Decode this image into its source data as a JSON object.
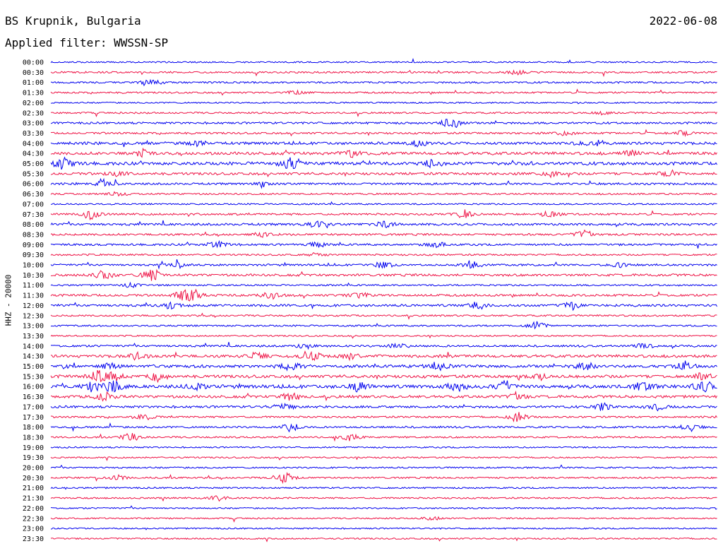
{
  "header": {
    "station": "BS Krupnik, Bulgaria",
    "date": "2022-06-08",
    "filter": "Applied filter: WWSSN-SP"
  },
  "colors": {
    "trace_a": "#0000ee",
    "trace_b": "#ee1144"
  },
  "chart_data": {
    "type": "line",
    "title": "BS Krupnik, Bulgaria",
    "ylabel": "HHZ - 20000",
    "xlabel": "",
    "ticks": [
      "00:00",
      "00:30",
      "01:00",
      "01:30",
      "02:00",
      "02:30",
      "03:00",
      "03:30",
      "04:00",
      "04:30",
      "05:00",
      "05:30",
      "06:00",
      "06:30",
      "07:00",
      "07:30",
      "08:00",
      "08:30",
      "09:00",
      "09:30",
      "10:00",
      "10:30",
      "11:00",
      "11:30",
      "12:00",
      "12:30",
      "13:00",
      "13:30",
      "14:00",
      "14:30",
      "15:00",
      "15:30",
      "16:00",
      "16:30",
      "17:00",
      "17:30",
      "18:00",
      "18:30",
      "19:00",
      "19:30",
      "20:00",
      "20:30",
      "21:00",
      "21:30",
      "22:00",
      "22:30",
      "23:00",
      "23:30"
    ],
    "activity": [
      0.2,
      0.3,
      0.35,
      0.3,
      0.2,
      0.3,
      0.45,
      0.4,
      0.7,
      0.75,
      0.85,
      0.6,
      0.45,
      0.3,
      0.25,
      0.4,
      0.55,
      0.45,
      0.45,
      0.3,
      0.4,
      0.55,
      0.3,
      0.5,
      0.55,
      0.3,
      0.3,
      0.2,
      0.45,
      0.7,
      0.75,
      0.8,
      0.95,
      0.65,
      0.55,
      0.35,
      0.4,
      0.3,
      0.2,
      0.2,
      0.25,
      0.3,
      0.25,
      0.25,
      0.2,
      0.2,
      0.2,
      0.2
    ],
    "events": [
      [],
      [
        [
          0.7,
          1.2
        ]
      ],
      [
        [
          0.15,
          1.5
        ]
      ],
      [
        [
          0.37,
          0.8
        ]
      ],
      [],
      [
        [
          0.83,
          0.8
        ]
      ],
      [
        [
          0.6,
          2.5
        ]
      ],
      [
        [
          0.77,
          0.8
        ],
        [
          0.95,
          0.9
        ]
      ],
      [
        [
          0.22,
          1.0
        ],
        [
          0.55,
          1.2
        ],
        [
          0.8,
          1.0
        ]
      ],
      [
        [
          0.14,
          1.2
        ],
        [
          0.45,
          1.3
        ],
        [
          0.87,
          1.1
        ]
      ],
      [
        [
          0.02,
          2.6
        ],
        [
          0.36,
          2.8
        ],
        [
          0.57,
          1.5
        ]
      ],
      [
        [
          0.1,
          1.0
        ],
        [
          0.75,
          0.9
        ],
        [
          0.93,
          1.2
        ]
      ],
      [
        [
          0.08,
          1.3
        ],
        [
          0.32,
          0.8
        ]
      ],
      [
        [
          0.1,
          0.8
        ]
      ],
      [],
      [
        [
          0.06,
          1.8
        ],
        [
          0.62,
          1.4
        ],
        [
          0.75,
          1.3
        ]
      ],
      [
        [
          0.4,
          1.2
        ],
        [
          0.5,
          1.1
        ]
      ],
      [
        [
          0.32,
          0.9
        ],
        [
          0.8,
          1.5
        ]
      ],
      [
        [
          0.25,
          1.4
        ],
        [
          0.4,
          1.1
        ],
        [
          0.58,
          1.1
        ]
      ],
      [
        [
          0.4,
          0.7
        ]
      ],
      [
        [
          0.19,
          1.0
        ],
        [
          0.5,
          1.5
        ],
        [
          0.63,
          1.3
        ],
        [
          0.85,
          1.1
        ]
      ],
      [
        [
          0.08,
          1.8
        ],
        [
          0.15,
          2.4
        ]
      ],
      [
        [
          0.12,
          0.9
        ]
      ],
      [
        [
          0.2,
          1.6
        ],
        [
          0.21,
          3.0
        ],
        [
          0.33,
          1.4
        ],
        [
          0.46,
          1.3
        ]
      ],
      [
        [
          0.18,
          1.5
        ],
        [
          0.64,
          1.2
        ],
        [
          0.78,
          1.6
        ]
      ],
      [],
      [
        [
          0.73,
          1.5
        ]
      ],
      [],
      [
        [
          0.38,
          1.0
        ],
        [
          0.52,
          1.1
        ],
        [
          0.89,
          1.1
        ]
      ],
      [
        [
          0.13,
          1.2
        ],
        [
          0.31,
          1.6
        ],
        [
          0.39,
          2.2
        ],
        [
          0.45,
          1.1
        ]
      ],
      [
        [
          0.09,
          1.2
        ],
        [
          0.36,
          1.5
        ],
        [
          0.58,
          1.8
        ],
        [
          0.8,
          1.6
        ],
        [
          0.95,
          1.7
        ]
      ],
      [
        [
          0.07,
          1.8
        ],
        [
          0.09,
          2.2
        ],
        [
          0.16,
          1.6
        ],
        [
          0.73,
          1.3
        ],
        [
          0.98,
          1.4
        ]
      ],
      [
        [
          0.06,
          2.0
        ],
        [
          0.09,
          2.8
        ],
        [
          0.22,
          1.6
        ],
        [
          0.46,
          2.4
        ],
        [
          0.61,
          1.9
        ],
        [
          0.68,
          2.1
        ],
        [
          0.89,
          2.0
        ],
        [
          0.98,
          2.2
        ]
      ],
      [
        [
          0.08,
          1.5
        ],
        [
          0.36,
          1.5
        ],
        [
          0.7,
          1.5
        ]
      ],
      [
        [
          0.35,
          1.3
        ],
        [
          0.83,
          1.5
        ],
        [
          0.91,
          1.3
        ]
      ],
      [
        [
          0.14,
          1.2
        ],
        [
          0.7,
          1.8
        ]
      ],
      [
        [
          0.36,
          1.6
        ],
        [
          0.96,
          1.4
        ]
      ],
      [
        [
          0.12,
          1.6
        ],
        [
          0.45,
          1.2
        ]
      ],
      [],
      [],
      [],
      [
        [
          0.35,
          2.2
        ],
        [
          0.1,
          0.9
        ]
      ],
      [],
      [
        [
          0.25,
          0.9
        ]
      ],
      [],
      [
        [
          0.57,
          0.8
        ]
      ],
      [],
      []
    ]
  }
}
